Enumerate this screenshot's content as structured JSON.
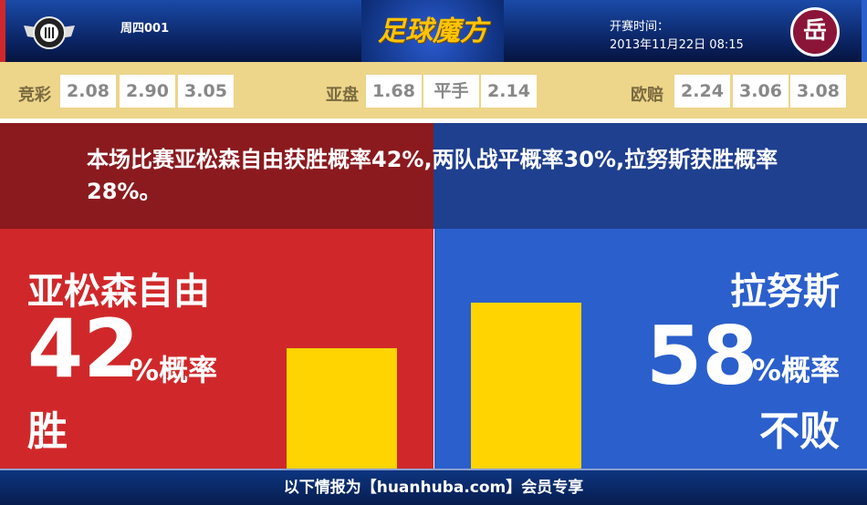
{
  "header": {
    "match_no": "周四001",
    "brand": "足球魔方",
    "kickoff_label": "开赛时间：",
    "kickoff_time": "2013年11月22日 08:15",
    "home_logo_text": "",
    "away_logo_text": "岳"
  },
  "odds": {
    "jingcai": {
      "label": "竞彩",
      "values": [
        "2.08",
        "2.90",
        "3.05"
      ]
    },
    "yapan": {
      "label": "亚盘",
      "values": [
        "1.68",
        "平手",
        "2.14"
      ]
    },
    "oupei": {
      "label": "欧赔",
      "values": [
        "2.24",
        "3.06",
        "3.08"
      ]
    }
  },
  "message": "本场比赛亚松森自由获胜概率42%,两队战平概率30%,拉努斯获胜概率28%。",
  "home": {
    "name": "亚松森自由",
    "percent": "42",
    "unit": "%概率",
    "result": "胜",
    "bar_value": 42,
    "color": "#d0282a"
  },
  "away": {
    "name": "拉努斯",
    "percent": "58",
    "unit": "%概率",
    "result": "不败",
    "bar_value": 58,
    "color": "#2b5fcc"
  },
  "bar_color": "#ffd400",
  "footer": "以下情报为【huanhuba.com】会员专享"
}
